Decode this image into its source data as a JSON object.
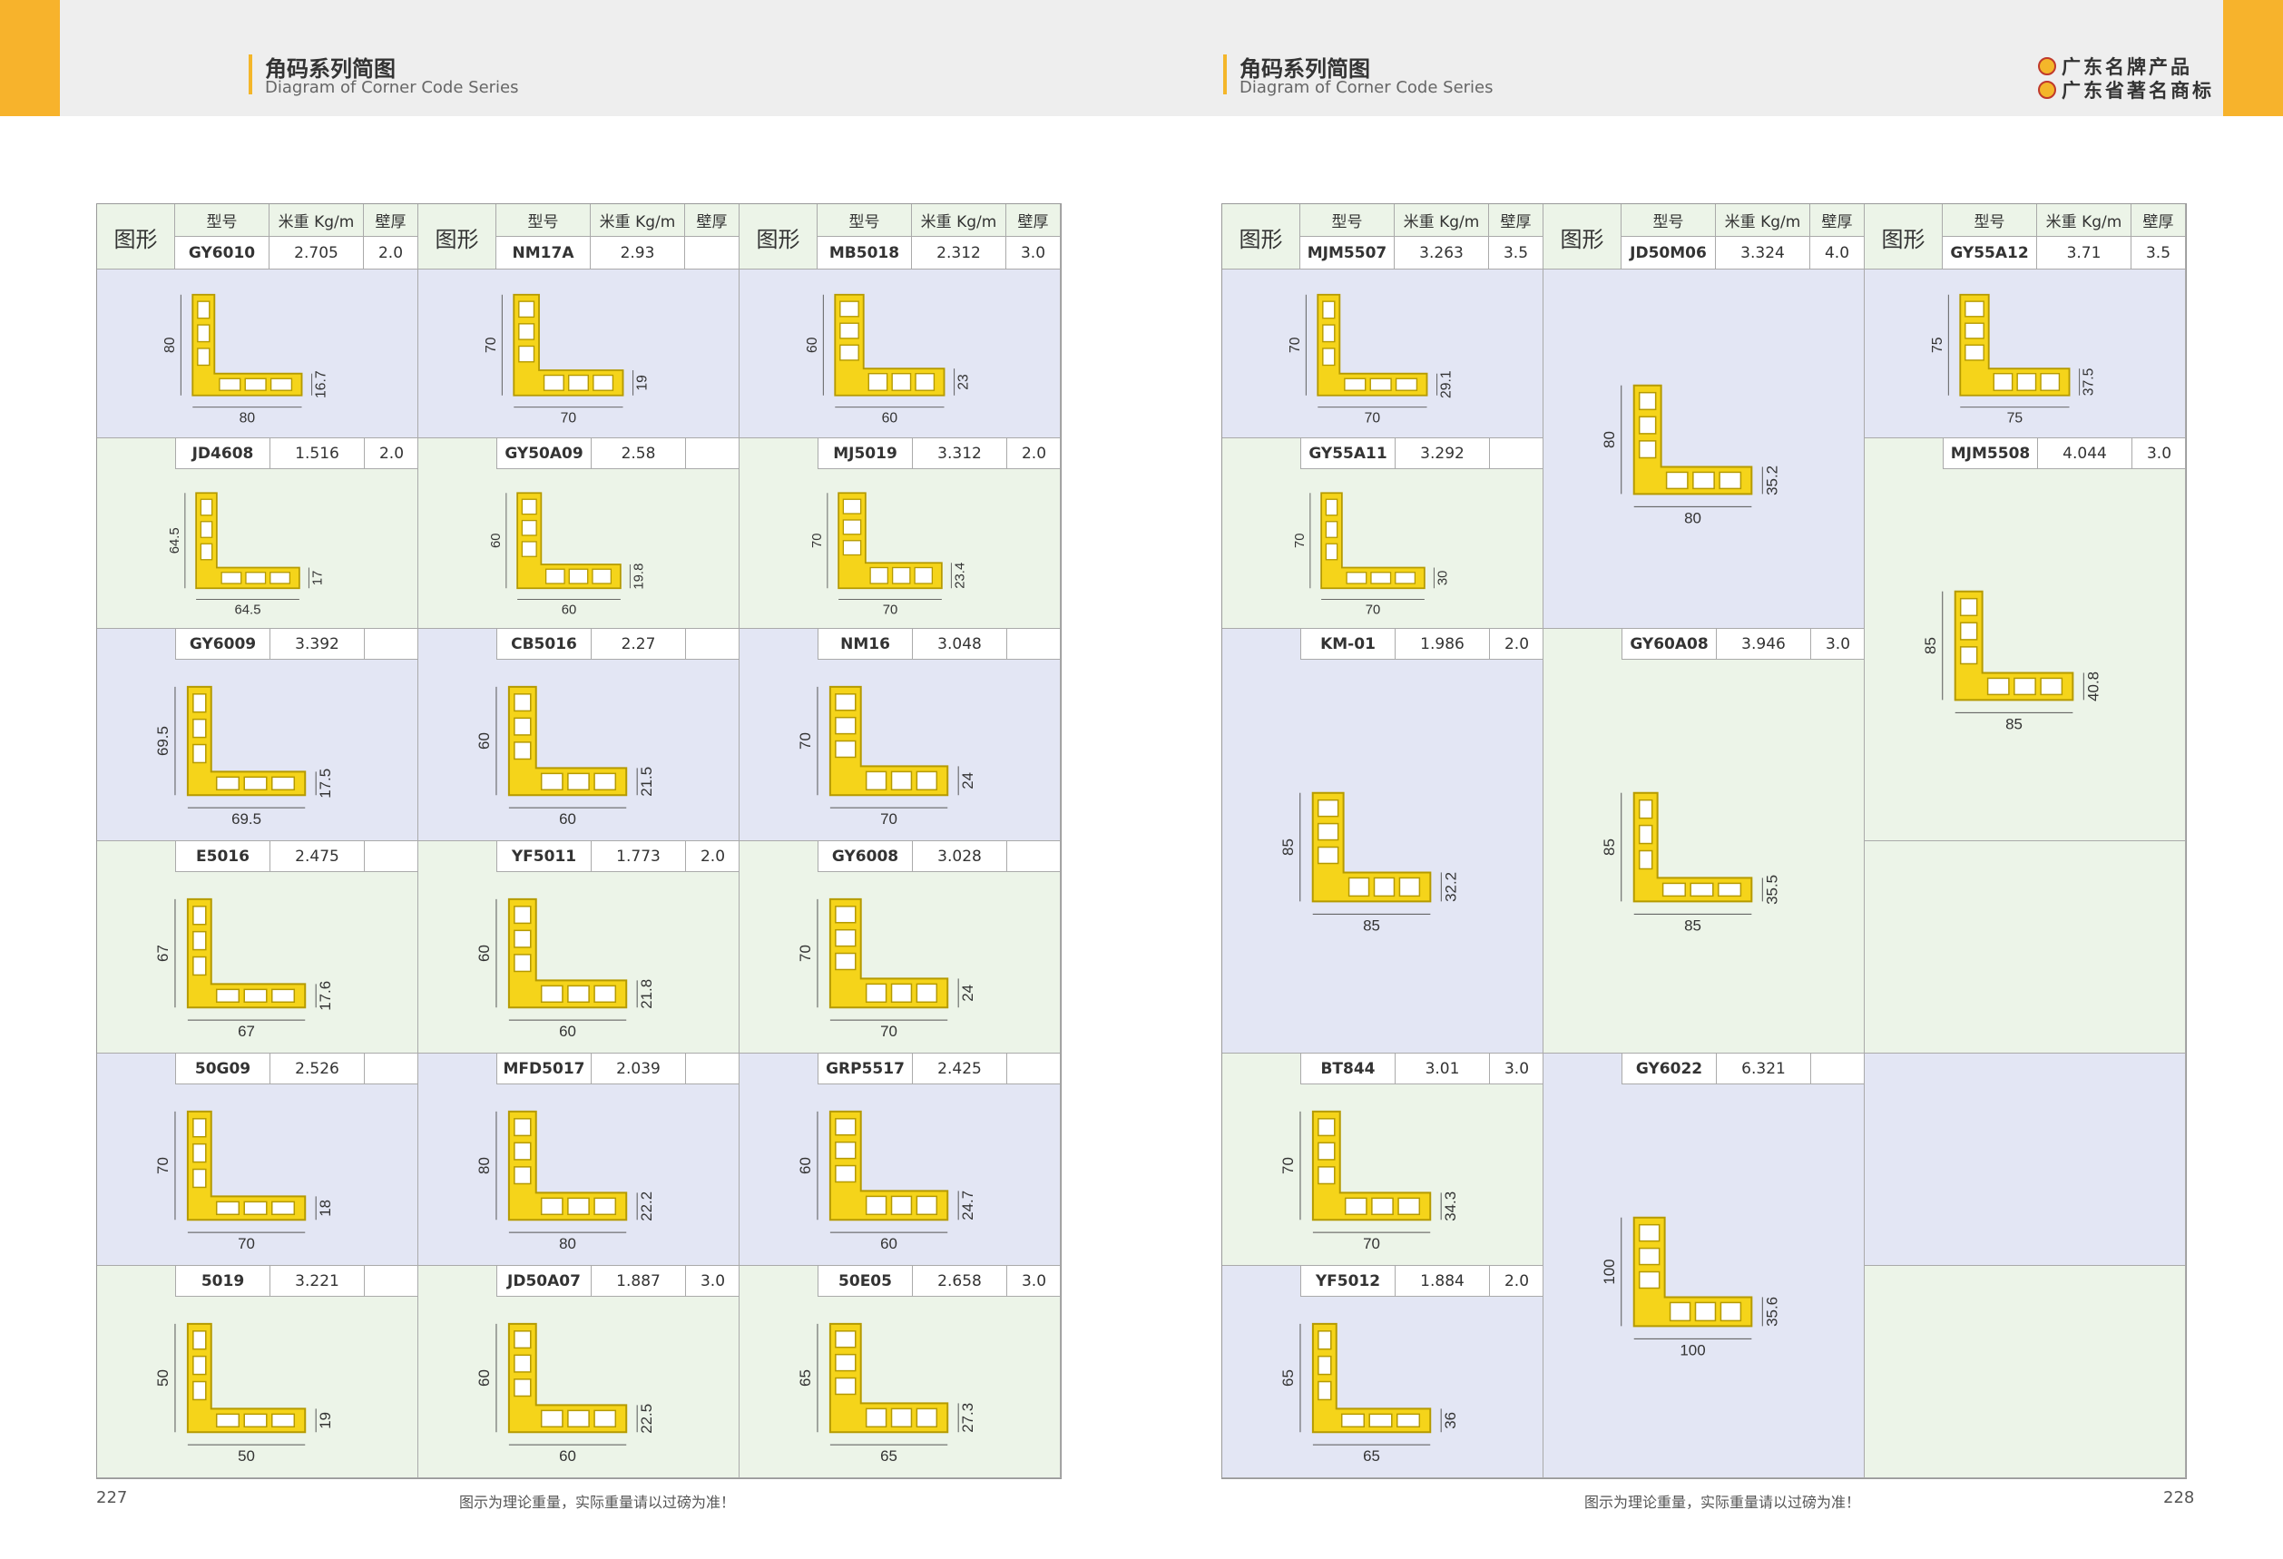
{
  "left": {
    "title_zh": "角码系列简图",
    "title_en": "Diagram of Corner Code Series",
    "page_number": "227",
    "footnote": "图示为理论重量，实际重量请以过磅为准！"
  },
  "right": {
    "title_zh": "角码系列简图",
    "title_en": "Diagram of Corner Code Series",
    "page_number": "228",
    "footnote": "图示为理论重量，实际重量请以过磅为准！",
    "brand_1": "广东名牌产品",
    "brand_2": "广东省著名商标"
  },
  "table_header": {
    "shape_label": "图形",
    "model_label": "型号",
    "weight_label": "米重 Kg/m",
    "thickness_label": "壁厚"
  },
  "left_items": [
    {
      "model": "GY6010",
      "weight": "2.705",
      "thickness": "2.0",
      "dims": [
        "80",
        "80",
        "16.7"
      ]
    },
    {
      "model": "NM17A",
      "weight": "2.93",
      "thickness": "",
      "dims": [
        "70",
        "70",
        "19"
      ]
    },
    {
      "model": "MB5018",
      "weight": "2.312",
      "thickness": "3.0",
      "dims": [
        "60",
        "60",
        "23"
      ]
    },
    {
      "model": "JD4608",
      "weight": "1.516",
      "thickness": "2.0",
      "dims": [
        "64.5",
        "64.5",
        "17"
      ]
    },
    {
      "model": "GY50A09",
      "weight": "2.58",
      "thickness": "",
      "dims": [
        "60",
        "60",
        "19.8"
      ]
    },
    {
      "model": "MJ5019",
      "weight": "3.312",
      "thickness": "2.0",
      "dims": [
        "70",
        "70",
        "23.4"
      ]
    },
    {
      "model": "GY6009",
      "weight": "3.392",
      "thickness": "",
      "dims": [
        "69.5",
        "69.5",
        "17.5"
      ]
    },
    {
      "model": "CB5016",
      "weight": "2.27",
      "thickness": "",
      "dims": [
        "60",
        "60",
        "21.5"
      ]
    },
    {
      "model": "NM16",
      "weight": "3.048",
      "thickness": "",
      "dims": [
        "70",
        "70",
        "24"
      ]
    },
    {
      "model": "E5016",
      "weight": "2.475",
      "thickness": "",
      "dims": [
        "67",
        "67",
        "17.6"
      ]
    },
    {
      "model": "YF5011",
      "weight": "1.773",
      "thickness": "2.0",
      "dims": [
        "60",
        "60",
        "21.8"
      ]
    },
    {
      "model": "GY6008",
      "weight": "3.028",
      "thickness": "",
      "dims": [
        "70",
        "70",
        "24"
      ]
    },
    {
      "model": "50G09",
      "weight": "2.526",
      "thickness": "",
      "dims": [
        "70",
        "70",
        "18"
      ]
    },
    {
      "model": "MFD5017",
      "weight": "2.039",
      "thickness": "",
      "dims": [
        "80",
        "80",
        "22.2"
      ]
    },
    {
      "model": "GRP5517",
      "weight": "2.425",
      "thickness": "",
      "dims": [
        "60",
        "60",
        "24.7"
      ]
    },
    {
      "model": "5019",
      "weight": "3.221",
      "thickness": "",
      "dims": [
        "50",
        "50",
        "19"
      ]
    },
    {
      "model": "JD50A07",
      "weight": "1.887",
      "thickness": "3.0",
      "dims": [
        "60",
        "60",
        "22.5"
      ]
    },
    {
      "model": "50E05",
      "weight": "2.658",
      "thickness": "3.0",
      "dims": [
        "65",
        "65",
        "27.3"
      ]
    }
  ],
  "right_items": [
    {
      "model": "MJM5507",
      "weight": "3.263",
      "thickness": "3.5",
      "dims": [
        "70",
        "70",
        "29.1"
      ]
    },
    {
      "model": "JD50M06",
      "weight": "3.324",
      "thickness": "4.0",
      "dims": [
        "80",
        "80",
        "35.2"
      ]
    },
    {
      "model": "GY55A12",
      "weight": "3.71",
      "thickness": "3.5",
      "dims": [
        "75",
        "75",
        "37.5"
      ]
    },
    {
      "model": "GY55A11",
      "weight": "3.292",
      "thickness": "",
      "dims": [
        "70",
        "70",
        "30"
      ]
    },
    {
      "model": "MJM5508",
      "weight": "4.044",
      "thickness": "3.0",
      "dims": [
        "85",
        "85",
        "40.8"
      ]
    },
    {
      "model": "KM-01",
      "weight": "1.986",
      "thickness": "2.0",
      "dims": [
        "85",
        "85",
        "32.2"
      ]
    },
    {
      "model": "GY60A08",
      "weight": "3.946",
      "thickness": "3.0",
      "dims": [
        "85",
        "85",
        "35.5"
      ]
    },
    {
      "model": "BT844",
      "weight": "3.01",
      "thickness": "3.0",
      "dims": [
        "70",
        "70",
        "34.3"
      ]
    },
    {
      "model": "GY6022",
      "weight": "6.321",
      "thickness": "",
      "dims": [
        "100",
        "100",
        "35.6"
      ]
    },
    {
      "model": "YF5012",
      "weight": "1.884",
      "thickness": "2.0",
      "dims": [
        "65",
        "65",
        "36"
      ]
    }
  ]
}
